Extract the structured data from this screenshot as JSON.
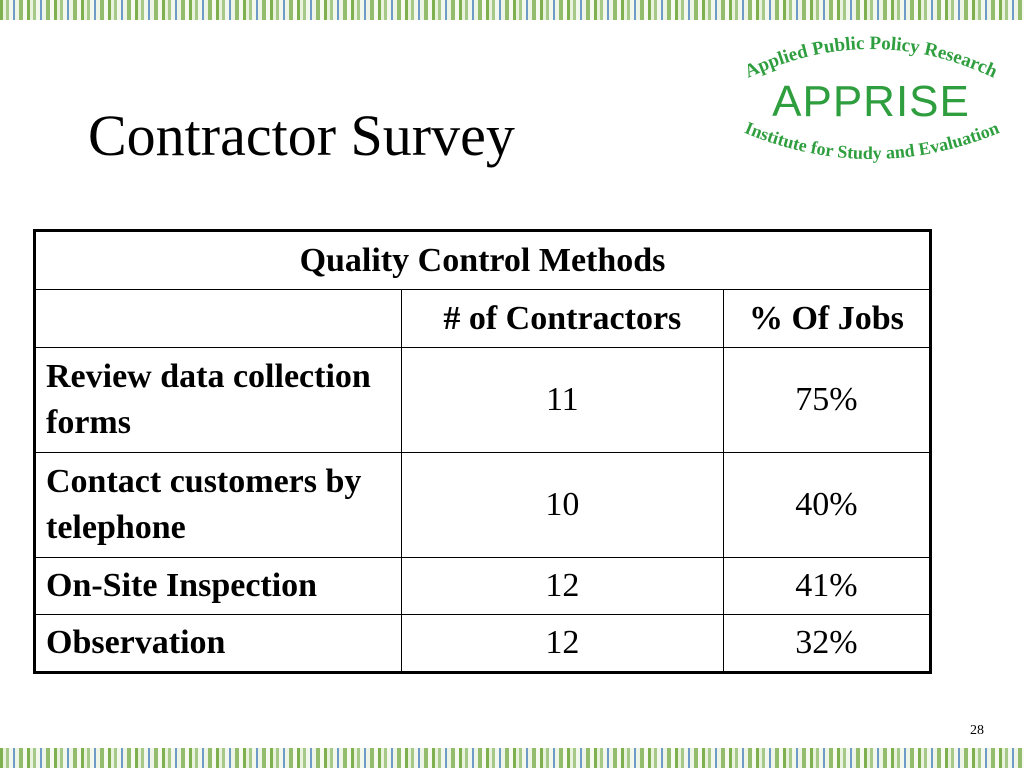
{
  "slide": {
    "title": "Contractor Survey",
    "page_number": "28"
  },
  "logo": {
    "top_text": "Applied Public Policy Research",
    "main_text": "APPRISE",
    "bottom_text": "Institute for Study and Evaluation",
    "color": "#2e9e3e"
  },
  "table": {
    "caption": "Quality Control Methods",
    "columns": [
      "",
      "# of Contractors",
      "% Of Jobs"
    ],
    "rows": [
      {
        "method": "Review data collection forms",
        "contractors": "11",
        "jobs": "75%"
      },
      {
        "method": "Contact customers by telephone",
        "contractors": "10",
        "jobs": "40%"
      },
      {
        "method": "On-Site Inspection",
        "contractors": "12",
        "jobs": "41%"
      },
      {
        "method": "Observation",
        "contractors": "12",
        "jobs": "32%"
      }
    ]
  }
}
